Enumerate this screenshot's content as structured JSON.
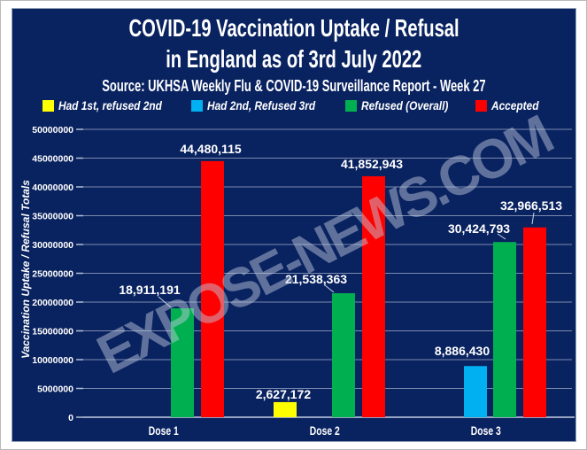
{
  "page": {
    "panel_bg": "#092260",
    "panel_border": "#97a2b8",
    "watermark": "EXPOSE-NEWS.COM"
  },
  "header": {
    "title_line1": "COVID-19 Vaccination Uptake / Refusal",
    "title_line2": "in England as of 3rd July 2022",
    "source": "Source: UKHSA Weekly Flu & COVID-19 Surveillance Report - Week 27"
  },
  "legend": {
    "items": [
      {
        "label": "Had 1st, refused 2nd",
        "color": "#ffff00"
      },
      {
        "label": "Had 2nd, Refused 3rd",
        "color": "#00b0f0"
      },
      {
        "label": "Refused (Overall)",
        "color": "#00b050"
      },
      {
        "label": "Accepted",
        "color": "#ff0000"
      }
    ]
  },
  "chart_data": {
    "type": "bar",
    "title": "COVID-19 Vaccination Uptake / Refusal in England as of 3rd July 2022",
    "categories": [
      "Dose 1",
      "Dose 2",
      "Dose 3"
    ],
    "series": [
      {
        "name": "Had 1st, refused 2nd",
        "color": "#ffff00",
        "values": [
          null,
          2627172,
          null
        ],
        "labels": [
          "",
          "2,627,172",
          ""
        ]
      },
      {
        "name": "Had 2nd, Refused 3rd",
        "color": "#00b0f0",
        "values": [
          null,
          null,
          8886430
        ],
        "labels": [
          "",
          "",
          "8,886,430"
        ]
      },
      {
        "name": "Refused (Overall)",
        "color": "#00b050",
        "values": [
          18911191,
          21538363,
          30424793
        ],
        "labels": [
          "18,911,191",
          "21,538,363",
          "30,424,793"
        ]
      },
      {
        "name": "Accepted",
        "color": "#ff0000",
        "values": [
          44480115,
          41852943,
          32966513
        ],
        "labels": [
          "44,480,115",
          "41,852,943",
          "32,966,513"
        ]
      }
    ],
    "xlabel": "",
    "ylabel": "Vaccination Uptake / Refusal Totals",
    "ylim": [
      0,
      50000000
    ],
    "ytick_step": 5000000,
    "yticks": [
      0,
      5000000,
      10000000,
      15000000,
      20000000,
      25000000,
      30000000,
      35000000,
      40000000,
      45000000,
      50000000
    ],
    "grid": true,
    "legend_position": "top",
    "text_color": "#ffffff",
    "background_color": "#092260"
  }
}
